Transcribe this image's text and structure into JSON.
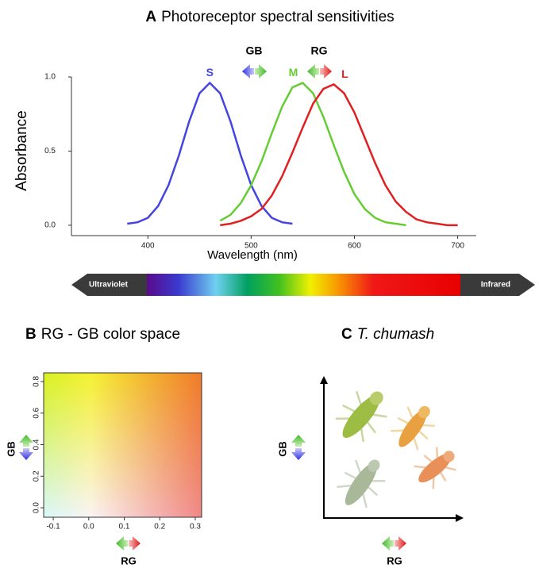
{
  "chart_data": [
    {
      "type": "line",
      "panel_label": "A",
      "title": "Photoreceptor spectral sensitivities",
      "xlabel": "Wavelength (nm)",
      "ylabel": "Absorbance",
      "annotations": [
        "GB",
        "RG"
      ],
      "spectrum_labels": [
        "Ultraviolet",
        "Infrared"
      ],
      "x": [
        380,
        390,
        400,
        410,
        420,
        430,
        440,
        450,
        460,
        470,
        480,
        490,
        500,
        510,
        520,
        530,
        540,
        550,
        560,
        570,
        580,
        590,
        600,
        610,
        620,
        630,
        640,
        650,
        660,
        670,
        680,
        690,
        700
      ],
      "series": [
        {
          "name": "S",
          "color": "#4444e0",
          "values": [
            0.01,
            0.02,
            0.05,
            0.13,
            0.27,
            0.47,
            0.7,
            0.89,
            0.96,
            0.89,
            0.7,
            0.47,
            0.27,
            0.13,
            0.05,
            0.02,
            0.01,
            null,
            null,
            null,
            null,
            null,
            null,
            null,
            null,
            null,
            null,
            null,
            null,
            null,
            null,
            null,
            null
          ]
        },
        {
          "name": "M",
          "color": "#66cc33",
          "values": [
            null,
            null,
            null,
            null,
            null,
            null,
            null,
            null,
            null,
            0.03,
            0.07,
            0.15,
            0.27,
            0.43,
            0.62,
            0.8,
            0.93,
            0.96,
            0.89,
            0.73,
            0.54,
            0.36,
            0.21,
            0.11,
            0.05,
            0.02,
            0.01,
            0.0,
            null,
            null,
            null,
            null,
            null
          ]
        },
        {
          "name": "L",
          "color": "#e02020",
          "values": [
            null,
            null,
            null,
            null,
            null,
            null,
            null,
            null,
            null,
            0.0,
            0.01,
            0.03,
            0.06,
            0.11,
            0.2,
            0.33,
            0.49,
            0.66,
            0.82,
            0.92,
            0.95,
            0.89,
            0.76,
            0.59,
            0.42,
            0.27,
            0.16,
            0.09,
            0.04,
            0.02,
            0.01,
            0.0,
            0.0
          ]
        }
      ],
      "xlim": [
        326,
        718
      ],
      "ylim": [
        -0.07,
        1.0
      ],
      "xticks": [
        400,
        500,
        600,
        700
      ],
      "yticks": [
        {
          "value": 0,
          "label": "0.0"
        },
        0.5,
        {
          "value": 1,
          "label": "1.0"
        }
      ]
    },
    {
      "type": "colorspace",
      "panel_label": "B",
      "title": "RG - GB color space",
      "xlabel": "RG",
      "ylabel": "GB",
      "xlim": [
        -0.127,
        0.318
      ],
      "ylim": [
        -0.06,
        0.855
      ],
      "xticks": [
        -0.1,
        {
          "value": 0,
          "label": "0.0"
        },
        0.1,
        0.2,
        0.3
      ],
      "yticks": [
        {
          "value": 0,
          "label": "0.0"
        },
        0.2,
        0.4,
        0.6,
        0.8
      ]
    },
    {
      "type": "illustration",
      "panel_label": "C",
      "title": "T. chumash",
      "xlabel": "RG",
      "ylabel": "GB"
    }
  ]
}
